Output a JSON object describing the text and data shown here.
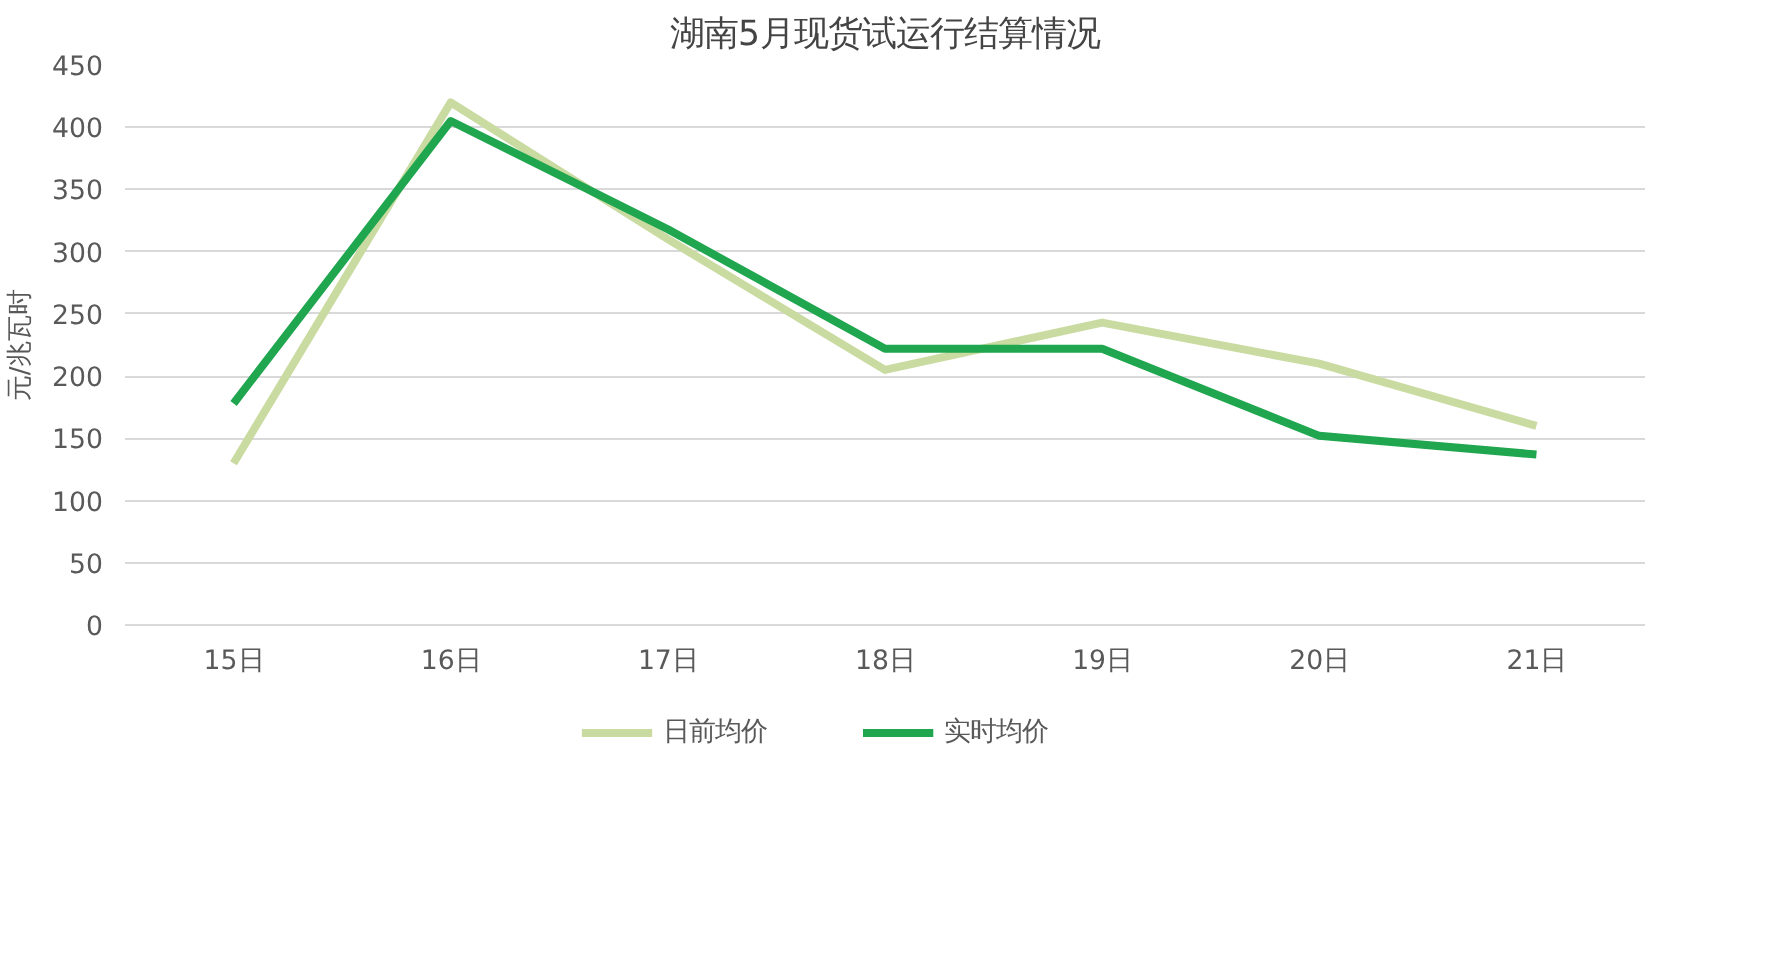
{
  "chart_data": {
    "type": "line",
    "title": "湖南5月现货试运行结算情况",
    "ylabel": "元/兆瓦时",
    "categories": [
      "15日",
      "16日",
      "17日",
      "18日",
      "19日",
      "20日",
      "21日"
    ],
    "series": [
      {
        "name": "日前均价",
        "color": "#c9dba1",
        "values": [
          130,
          420,
          310,
          205,
          243,
          210,
          160
        ]
      },
      {
        "name": "实时均价",
        "color": "#1fa64f",
        "values": [
          178,
          405,
          318,
          222,
          222,
          152,
          137
        ]
      }
    ],
    "ylim": [
      0,
      450
    ],
    "yticks": [
      0,
      50,
      100,
      150,
      200,
      250,
      300,
      350,
      400,
      450
    ],
    "grid": "y",
    "legend": "bottom",
    "marker": "none",
    "line_style": "solid"
  }
}
